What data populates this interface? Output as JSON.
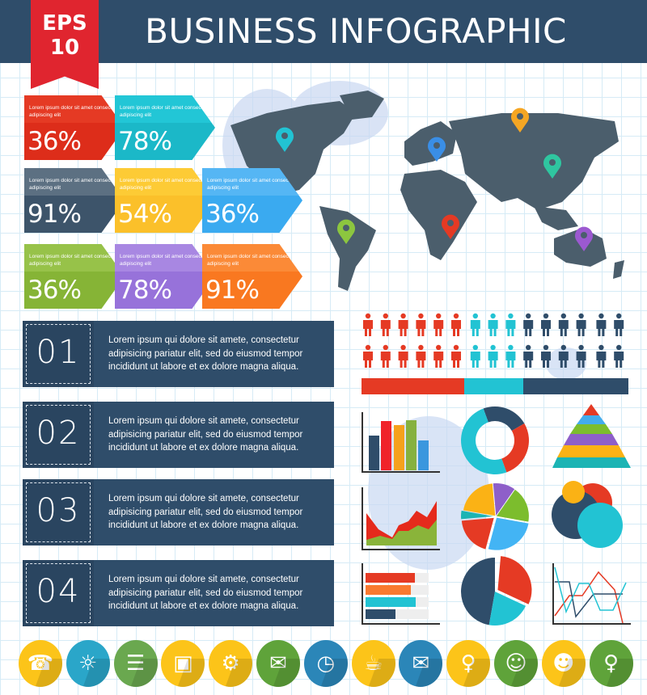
{
  "header": {
    "title": "BUSINESS INFOGRAPHIC",
    "badge_line1": "EPS",
    "badge_line2": "10"
  },
  "stat_boxes": [
    {
      "text": "Lorem ipsum dolor sit amet consectetuer adipiscing elit",
      "value": "36%",
      "color": "#e53a24",
      "dark": "#dd2d1a"
    },
    {
      "text": "Lorem ipsum dolor sit amet consectetuer adipiscing elit",
      "value": "78%",
      "color": "#22c6d6",
      "dark": "#1bb8c8"
    },
    {
      "text": "Lorem ipsum dolor sit amet consectetuer adipiscing elit",
      "value": "91%",
      "color": "#5c7082",
      "dark": "#3d546a"
    },
    {
      "text": "Lorem ipsum dolor sit amet consectetuer adipiscing elit",
      "value": "54%",
      "color": "#fdcb35",
      "dark": "#fbc02a"
    },
    {
      "text": "Lorem ipsum dolor sit amet consectetuer adipiscing elit",
      "value": "36%",
      "color": "#55b6f4",
      "dark": "#3aaaf0"
    },
    {
      "text": "Lorem ipsum dolor sit amet consectetuer adipiscing elit",
      "value": "36%",
      "color": "#97c249",
      "dark": "#86b436"
    },
    {
      "text": "Lorem ipsum dolor sit amet consectetuer adipiscing elit",
      "value": "78%",
      "color": "#a887e2",
      "dark": "#9772da"
    },
    {
      "text": "Lorem ipsum dolor sit amet consectetuer adipiscing elit",
      "value": "91%",
      "color": "#fb8a37",
      "dark": "#f97820"
    }
  ],
  "numbered_items": [
    {
      "number": "01",
      "text": "Lorem ipsum qui dolore sit amete, consectetur adipisicing pariatur elit, sed do eiusmod tempor incididunt ut labore et ex dolore magna aliqua."
    },
    {
      "number": "02",
      "text": "Lorem ipsum qui dolore sit amete, consectetur adipisicing pariatur elit, sed do eiusmod tempor incididunt ut labore et ex dolore magna aliqua."
    },
    {
      "number": "03",
      "text": "Lorem ipsum qui dolore sit amete, consectetur adipisicing pariatur elit, sed do eiusmod tempor incididunt ut labore et ex dolore magna aliqua."
    },
    {
      "number": "04",
      "text": "Lorem ipsum qui dolore sit amete, consectetur adipisicing pariatur elit, sed do eiusmod tempor incididunt ut labore et ex dolore magna aliqua."
    }
  ],
  "colors": {
    "header": "#2f4d6a",
    "map": "#4b5e6c",
    "red": "#e53a24",
    "cyan": "#22c3d3",
    "dark": "#2f4d6a"
  },
  "people": {
    "per_row": {
      "red": 6,
      "cyan": 3,
      "dark": 6
    },
    "rows": 2
  },
  "map_pins": [
    {
      "color": "#22c3d3"
    },
    {
      "color": "#3a8ee6"
    },
    {
      "color": "#f5a623"
    },
    {
      "color": "#2fc6a0"
    },
    {
      "color": "#8cc63f"
    },
    {
      "color": "#e53a24"
    },
    {
      "color": "#9b59d0"
    }
  ],
  "bottom_icons": [
    {
      "name": "phone",
      "glyph": "☎",
      "bg": "#fcc419"
    },
    {
      "name": "lightbulb",
      "glyph": "☼",
      "bg": "#2aa6c9"
    },
    {
      "name": "clipboard",
      "glyph": "☰",
      "bg": "#6aa84f"
    },
    {
      "name": "briefcase",
      "glyph": "▣",
      "bg": "#fcc419"
    },
    {
      "name": "gears",
      "glyph": "⚙",
      "bg": "#fcc419"
    },
    {
      "name": "chat",
      "glyph": "✉",
      "bg": "#5fa33a"
    },
    {
      "name": "clock",
      "glyph": "◷",
      "bg": "#2b86b8"
    },
    {
      "name": "coffee-cup",
      "glyph": "☕",
      "bg": "#fcc419"
    },
    {
      "name": "envelope",
      "glyph": "✉",
      "bg": "#2b86b8"
    },
    {
      "name": "woman-avatar",
      "glyph": "♀",
      "bg": "#fcc419"
    },
    {
      "name": "man-glasses-avatar",
      "glyph": "☺",
      "bg": "#5fa33a"
    },
    {
      "name": "bearded-man-avatar",
      "glyph": "☻",
      "bg": "#fcc419"
    },
    {
      "name": "red-haired-woman-avatar",
      "glyph": "♀",
      "bg": "#5fa33a"
    }
  ]
}
